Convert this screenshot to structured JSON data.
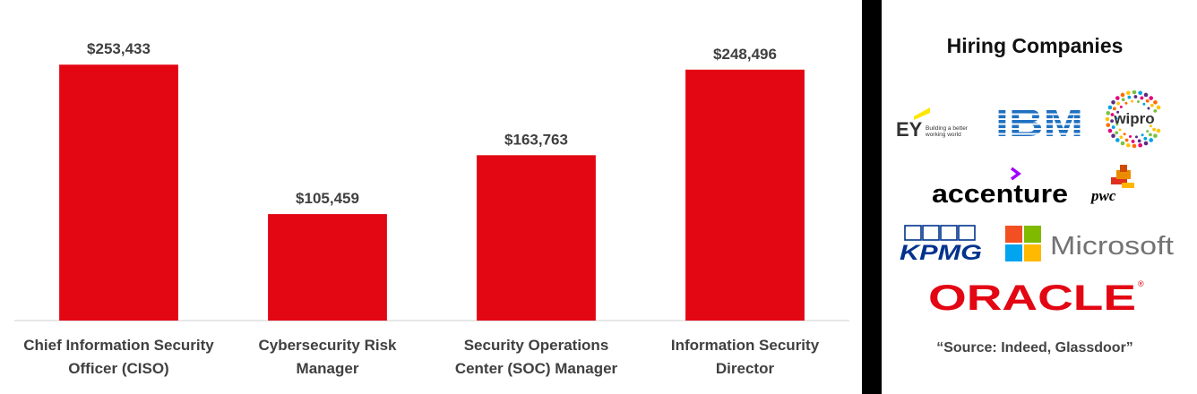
{
  "chart_data": {
    "type": "bar",
    "categories": [
      [
        "Chief Information Security",
        "Officer (CISO)"
      ],
      [
        "Cybersecurity Risk",
        "Manager"
      ],
      [
        "Security Operations",
        "Center (SOC) Manager"
      ],
      [
        "Information Security",
        "Director"
      ]
    ],
    "values": [
      253433,
      105459,
      163763,
      248496
    ],
    "value_labels": [
      "$253,433",
      "$105,459",
      "$163,763",
      "$248,496"
    ],
    "ylim": [
      0,
      282000
    ],
    "bar_color": "#e30613",
    "grid": false,
    "title": "",
    "xlabel": "",
    "ylabel": ""
  },
  "sidebar": {
    "title": "Hiring Companies",
    "logos": [
      {
        "name": "EY",
        "tagline": "Building a better working world",
        "color": "#333333",
        "accent": "#ffe600"
      },
      {
        "name": "IBM",
        "color": "#1f70c1"
      },
      {
        "name": "wipro",
        "color": "#333333"
      },
      {
        "name": "accenture",
        "color": "#000000",
        "accent": "#a100ff"
      },
      {
        "name": "pwc",
        "color": "#000000",
        "accent": "#e0301e"
      },
      {
        "name": "KPMG",
        "color": "#00338d"
      },
      {
        "name": "Microsoft",
        "color": "#737373",
        "squares": [
          "#f25022",
          "#7fba00",
          "#00a4ef",
          "#ffb900"
        ]
      },
      {
        "name": "ORACLE",
        "color": "#e30613"
      }
    ],
    "source": "“Source: Indeed, Glassdoor”"
  }
}
